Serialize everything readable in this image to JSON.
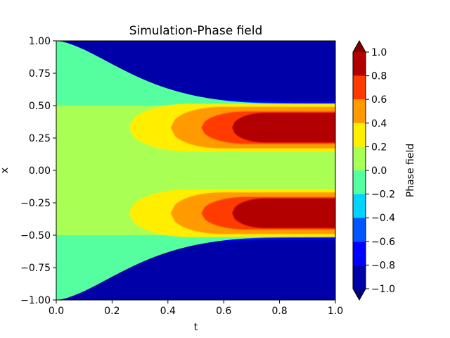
{
  "chart_data": {
    "type": "contourf",
    "title": "Simulation-Phase field",
    "xlabel": "t",
    "ylabel": "x",
    "xlim": [
      0.0,
      1.0
    ],
    "ylim": [
      -1.0,
      1.0
    ],
    "xticks": [
      "0.0",
      "0.2",
      "0.4",
      "0.6",
      "0.8",
      "1.0"
    ],
    "yticks": [
      "1.00",
      "0.75",
      "0.50",
      "0.25",
      "0.00",
      "−0.25",
      "−0.50",
      "−0.75",
      "−1.00"
    ],
    "colorbar": {
      "label": "Phase field",
      "levels": [
        -1.0,
        -0.8,
        -0.6,
        -0.4,
        -0.2,
        0.0,
        0.2,
        0.4,
        0.6,
        0.8,
        1.0
      ],
      "tick_labels": [
        "1.0",
        "0.8",
        "0.6",
        "0.4",
        "0.2",
        "0.0",
        "−0.2",
        "−0.4",
        "−0.6",
        "−0.8",
        "−1.0"
      ],
      "colors": [
        "#0000a8",
        "#0000ff",
        "#0057ff",
        "#00d4ff",
        "#55ffa0",
        "#aaff55",
        "#ffee00",
        "#ff9a00",
        "#ff3a00",
        "#b20000"
      ],
      "extend": "both",
      "under_color": "#00007f",
      "over_color": "#7f0000"
    },
    "colormap": "jet",
    "grid": false
  }
}
